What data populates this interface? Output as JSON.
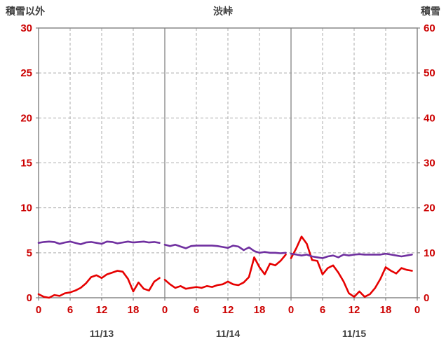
{
  "chart_data": {
    "type": "line",
    "title": "渋峠",
    "ylabel_left": "積雪以外",
    "ylabel_right": "積雪",
    "left_axis": {
      "min": 0,
      "max": 30,
      "ticks": [
        0,
        5,
        10,
        15,
        20,
        25,
        30
      ]
    },
    "right_axis": {
      "min": 0,
      "max": 60,
      "ticks": [
        0,
        10,
        20,
        30,
        40,
        50,
        60
      ]
    },
    "x_hour_ticks": [
      0,
      6,
      12,
      18
    ],
    "x_final_tick": "0",
    "dates": [
      "11/13",
      "11/14",
      "11/15"
    ],
    "hours_per_day": 24,
    "grid": true,
    "legend": "none",
    "colors": {
      "tick_label": "#cc0000",
      "date_label": "#404040",
      "title": "#3f3f3f",
      "grid_dashed": "#ababab",
      "day_boundary": "#8c8c8c",
      "border": "#808080",
      "series_red": "#e60000",
      "series_purple": "#7030a0"
    },
    "series": [
      {
        "name": "sekisetsu-igai",
        "axis": "left",
        "color_key": "series_red",
        "days": [
          [
            0.4,
            0.1,
            0.0,
            0.3,
            0.2,
            0.5,
            0.6,
            0.8,
            1.1,
            1.6,
            2.3,
            2.5,
            2.2,
            2.6,
            2.8,
            3.0,
            2.9,
            2.1,
            0.7,
            1.7,
            1.0,
            0.8,
            1.8,
            2.2
          ],
          [
            2.0,
            1.5,
            1.1,
            1.3,
            1.0,
            1.1,
            1.2,
            1.1,
            1.3,
            1.2,
            1.4,
            1.5,
            1.8,
            1.5,
            1.4,
            1.7,
            2.3,
            4.5,
            3.4,
            2.6,
            3.8,
            3.6,
            4.1,
            4.8
          ],
          [
            4.4,
            5.5,
            6.8,
            6.0,
            4.2,
            4.1,
            2.6,
            3.3,
            3.6,
            2.8,
            1.8,
            0.5,
            0.1,
            0.7,
            0.1,
            0.4,
            1.1,
            2.1,
            3.4,
            3.0,
            2.7,
            3.3,
            3.1,
            3.0
          ]
        ]
      },
      {
        "name": "sekisetsu",
        "axis": "right",
        "color_key": "series_purple",
        "days": [
          [
            12.2,
            12.4,
            12.5,
            12.4,
            12.0,
            12.3,
            12.5,
            12.2,
            11.9,
            12.3,
            12.4,
            12.2,
            12.0,
            12.5,
            12.4,
            12.1,
            12.3,
            12.5,
            12.3,
            12.4,
            12.5,
            12.3,
            12.4,
            12.2
          ],
          [
            11.8,
            11.5,
            11.8,
            11.4,
            11.0,
            11.5,
            11.6,
            11.6,
            11.6,
            11.6,
            11.5,
            11.3,
            11.1,
            11.6,
            11.4,
            10.6,
            11.2,
            10.4,
            10.0,
            10.2,
            10.0,
            10.0,
            9.9,
            10.0
          ],
          [
            9.8,
            9.6,
            9.4,
            9.6,
            9.2,
            9.0,
            8.8,
            9.2,
            9.4,
            9.0,
            9.6,
            9.4,
            9.6,
            9.7,
            9.6,
            9.6,
            9.6,
            9.6,
            9.8,
            9.6,
            9.4,
            9.2,
            9.4,
            9.6
          ]
        ]
      }
    ]
  }
}
